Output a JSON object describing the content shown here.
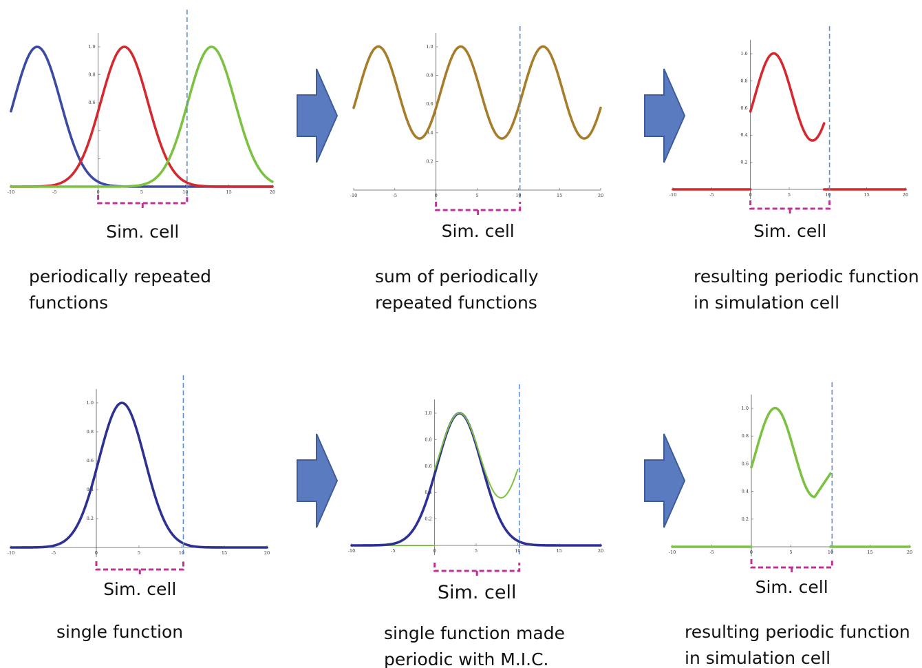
{
  "colors": {
    "blue": "#3c4aa3",
    "navy": "#2e3192",
    "red": "#d42a2f",
    "green": "#7dc142",
    "gold": "#a77d29",
    "dashed_line": "#5b8fd0",
    "bracket": "#c02f9a",
    "arrow_fill": "#5a7bbf",
    "arrow_stroke": "#3e5c99"
  },
  "panels": [
    {
      "cell_label": "Sim. cell",
      "caption": [
        "periodically repeated",
        "functions"
      ],
      "chart_data": {
        "type": "line",
        "xlim": [
          -10,
          20
        ],
        "ylim": [
          0,
          1.1
        ],
        "x_ticks": [
          -10,
          -5,
          0,
          5,
          10,
          15,
          20
        ],
        "y_ticks": [
          0.2,
          0.4,
          0.6,
          0.8,
          1.0
        ],
        "y_tick_labels": [
          "",
          "",
          "0.6",
          "0.8",
          "1.0"
        ],
        "vline_x": 10.2,
        "series": [
          {
            "color_key": "blue",
            "function": "gaussian",
            "center": -7,
            "sigma": 2.7,
            "x_range": [
              -10,
              20
            ]
          },
          {
            "color_key": "red",
            "function": "gaussian",
            "center": 3,
            "sigma": 2.7,
            "x_range": [
              -10,
              20
            ]
          },
          {
            "color_key": "green",
            "function": "gaussian",
            "center": 13,
            "sigma": 2.7,
            "x_range": [
              -10,
              20
            ]
          }
        ]
      }
    },
    {
      "cell_label": "Sim. cell",
      "caption": [
        "sum of periodically",
        "repeated functions"
      ],
      "chart_data": {
        "type": "line",
        "xlim": [
          -10,
          20
        ],
        "ylim": [
          0,
          1.1
        ],
        "x_ticks": [
          -10,
          -5,
          0,
          5,
          10,
          15,
          20
        ],
        "y_ticks": [
          0.2,
          0.4,
          0.6,
          0.8,
          1.0
        ],
        "y_tick_labels": [
          "0.2",
          "0.4",
          "0.6",
          "0.8",
          "1.0"
        ],
        "vline_x": 10.2,
        "series": [
          {
            "color_key": "gold",
            "function": "periodic_sum",
            "center": 3,
            "sigma": 2.7,
            "period": 10,
            "x_range": [
              -10,
              20
            ]
          }
        ]
      }
    },
    {
      "cell_label": "Sim. cell",
      "caption": [
        "resulting periodic function",
        "in simulation cell"
      ],
      "chart_data": {
        "type": "line",
        "xlim": [
          -10,
          20
        ],
        "ylim": [
          0,
          1.1
        ],
        "x_ticks": [
          -10,
          -5,
          0,
          5,
          10,
          15,
          20
        ],
        "y_ticks": [
          0.2,
          0.4,
          0.6,
          0.8,
          1.0
        ],
        "y_tick_labels": [
          "0.2",
          "0.4",
          "0.6",
          "0.8",
          "1.0"
        ],
        "vline_x": 10.2,
        "series": [
          {
            "color_key": "red",
            "function": "zero",
            "x_range": [
              -10,
              0
            ]
          },
          {
            "color_key": "red",
            "function": "periodic_sum",
            "center": 3,
            "sigma": 2.7,
            "period": 10,
            "x_range": [
              0,
              9.5
            ]
          },
          {
            "color_key": "red",
            "function": "zero",
            "x_range": [
              9.5,
              20
            ]
          }
        ]
      }
    },
    {
      "cell_label": "Sim. cell",
      "caption": [
        "single function"
      ],
      "chart_data": {
        "type": "line",
        "xlim": [
          -10,
          20
        ],
        "ylim": [
          0,
          1.1
        ],
        "x_ticks": [
          -10,
          -5,
          0,
          5,
          10,
          15,
          20
        ],
        "y_ticks": [
          0.2,
          0.4,
          0.6,
          0.8,
          1.0
        ],
        "y_tick_labels": [
          "0.2",
          "0.4",
          "0.6",
          "0.8",
          "1.0"
        ],
        "vline_x": 10.2,
        "series": [
          {
            "color_key": "navy",
            "function": "gaussian",
            "center": 3,
            "sigma": 2.7,
            "x_range": [
              -10,
              20
            ]
          }
        ]
      }
    },
    {
      "cell_label": "Sim. cell",
      "caption": [
        "single function made",
        "periodic with M.I.C."
      ],
      "chart_data": {
        "type": "line",
        "xlim": [
          -10,
          20
        ],
        "ylim": [
          0,
          1.1
        ],
        "x_ticks": [
          -10,
          -5,
          0,
          5,
          10,
          15,
          20
        ],
        "y_ticks": [
          0.2,
          0.4,
          0.6,
          0.8,
          1.0
        ],
        "y_tick_labels": [
          "0.2",
          "0.4",
          "0.6",
          "0.8",
          "1.0"
        ],
        "vline_x": 10.2,
        "series": [
          {
            "color_key": "green",
            "function": "zero",
            "x_range": [
              -10,
              0
            ],
            "width": 2
          },
          {
            "color_key": "navy",
            "function": "gaussian",
            "center": 3,
            "sigma": 2.7,
            "x_range": [
              -10,
              20
            ]
          },
          {
            "color_key": "green",
            "function": "periodic_sum",
            "center": 3,
            "sigma": 2.7,
            "period": 10,
            "x_range": [
              0,
              10
            ],
            "width": 2
          }
        ]
      }
    },
    {
      "cell_label": "Sim. cell",
      "caption": [
        "resulting periodic function",
        "in simulation cell"
      ],
      "chart_data": {
        "type": "line",
        "xlim": [
          -10,
          20
        ],
        "ylim": [
          0,
          1.1
        ],
        "x_ticks": [
          -10,
          -5,
          0,
          5,
          10,
          15,
          20
        ],
        "y_ticks": [
          0.2,
          0.4,
          0.6,
          0.8,
          1.0
        ],
        "y_tick_labels": [
          "0.2",
          "0.4",
          "0.6",
          "0.8",
          "1.0"
        ],
        "vline_x": 10.2,
        "series": [
          {
            "color_key": "green",
            "function": "zero",
            "x_range": [
              -10,
              0
            ]
          },
          {
            "color_key": "green",
            "function": "v_shape",
            "center": 3,
            "sigma": 2.7,
            "x_range": [
              0,
              10
            ]
          },
          {
            "color_key": "green",
            "function": "zero",
            "x_range": [
              10,
              20
            ]
          }
        ]
      }
    }
  ]
}
